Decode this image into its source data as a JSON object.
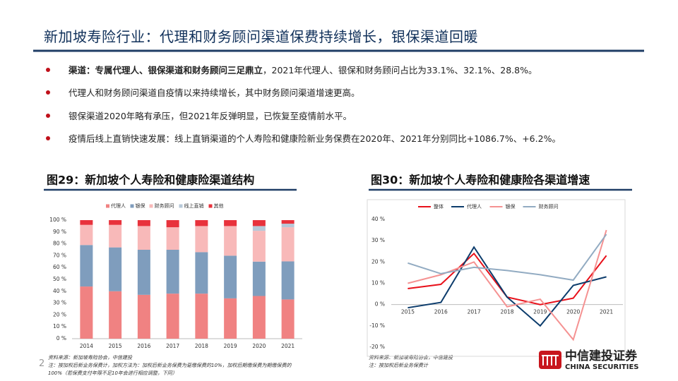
{
  "header": {
    "title": "新加坡寿险行业：代理和财务顾问渠道保费持续增长，银保渠道回暖"
  },
  "bullets": [
    {
      "bold": "渠道：专属代理人、银保渠道和财务顾问三足鼎立",
      "text": "，2021年代理人、银保和财务顾问占比为33.1%、32.1%、28.8%。"
    },
    {
      "text": "代理人和财务顾问渠道自疫情以来持续增长，其中财务顾问渠道增速更高。"
    },
    {
      "text": "银保渠道2020年略有承压，但2021年反弹明显，已恢复至疫情前水平。"
    },
    {
      "text": "疫情后线上直销快速发展：线上直销渠道的个人寿险和健康险新业务保费在2020年、2021年分别同比+1086.7%、+6.2%。"
    }
  ],
  "chart_data": [
    {
      "type": "stacked_bar",
      "title": "图29：新加坡个人寿险和健康险渠道结构",
      "categories": [
        "2014",
        "2015",
        "2016",
        "2017",
        "2018",
        "2019",
        "2020",
        "2021"
      ],
      "series": [
        {
          "name": "代理人",
          "color": "#f08282",
          "values": [
            44,
            40,
            37,
            38,
            38,
            34,
            36,
            33.1
          ]
        },
        {
          "name": "银保",
          "color": "#7f9dbd",
          "values": [
            35,
            37,
            38,
            37,
            35,
            36,
            29,
            32.1
          ]
        },
        {
          "name": "财务顾问",
          "color": "#f8b9b9",
          "values": [
            17,
            19,
            20,
            19,
            22,
            25,
            26,
            28.8
          ]
        },
        {
          "name": "线上直销",
          "color": "#b7c8d8",
          "values": [
            0,
            0,
            0,
            0,
            0,
            0,
            4,
            3
          ]
        },
        {
          "name": "其他",
          "color": "#e8323c",
          "values": [
            4,
            4,
            5,
            6,
            5,
            5,
            5,
            3
          ]
        }
      ],
      "ylim": [
        0,
        100
      ],
      "yticks": [
        {
          "value": 0,
          "label": "0 %"
        },
        {
          "value": 10,
          "label": "10 %"
        },
        {
          "value": 20,
          "label": "20 %"
        },
        {
          "value": 30,
          "label": "30 %"
        },
        {
          "value": 40,
          "label": "40 %"
        },
        {
          "value": 50,
          "label": "50 %"
        },
        {
          "value": 60,
          "label": "60 %"
        },
        {
          "value": 70,
          "label": "70 %"
        },
        {
          "value": 80,
          "label": "80 %"
        },
        {
          "value": 90,
          "label": "90 %"
        },
        {
          "value": 100,
          "label": "100 %"
        }
      ],
      "grid": false,
      "notes": [
        "资料来源：新加坡寿险协会，中信建投",
        "注：按加权后新业务保费计，加权方法为：加权后新业务保费为趸缴保费的10%，加权后期缴保费为期缴保费的100%（若保费支付年限不足10年会进行相应调整，下同）"
      ]
    },
    {
      "type": "line",
      "title": "图30：新加坡个人寿险和健康险各渠道增速",
      "categories": [
        "2015",
        "2016",
        "2017",
        "2018",
        "2019",
        "2020",
        "2021"
      ],
      "series": [
        {
          "name": "整体",
          "color": "#e8101a",
          "values": [
            7.5,
            9.5,
            24,
            3.5,
            0,
            3,
            23
          ]
        },
        {
          "name": "代理人",
          "color": "#0c3c6c",
          "values": [
            -1.5,
            1,
            27,
            3.5,
            -10,
            9,
            13
          ]
        },
        {
          "name": "银保",
          "color": "#f59292",
          "values": [
            10,
            14,
            20,
            -1,
            2.5,
            -16.5,
            35
          ]
        },
        {
          "name": "财务顾问",
          "color": "#92abc2",
          "values": [
            19.5,
            14.5,
            17.5,
            16,
            14,
            11.5,
            33
          ]
        }
      ],
      "ylim": [
        -20,
        40
      ],
      "yticks": [
        {
          "value": -20,
          "label": "-20 %"
        },
        {
          "value": -10,
          "label": "-10 %"
        },
        {
          "value": 0,
          "label": "0 %"
        },
        {
          "value": 10,
          "label": "10 %"
        },
        {
          "value": 20,
          "label": "20 %"
        },
        {
          "value": 30,
          "label": "30 %"
        },
        {
          "value": 40,
          "label": "40 %"
        }
      ],
      "grid": false,
      "notes": [
        "资料来源：新加坡寿险协会，中信建投",
        "注：按加权后新业务保费计"
      ]
    }
  ],
  "footer": {
    "page": "2",
    "logo_name": "中信建投证券",
    "logo_english": "CHINA SECURITIES"
  }
}
